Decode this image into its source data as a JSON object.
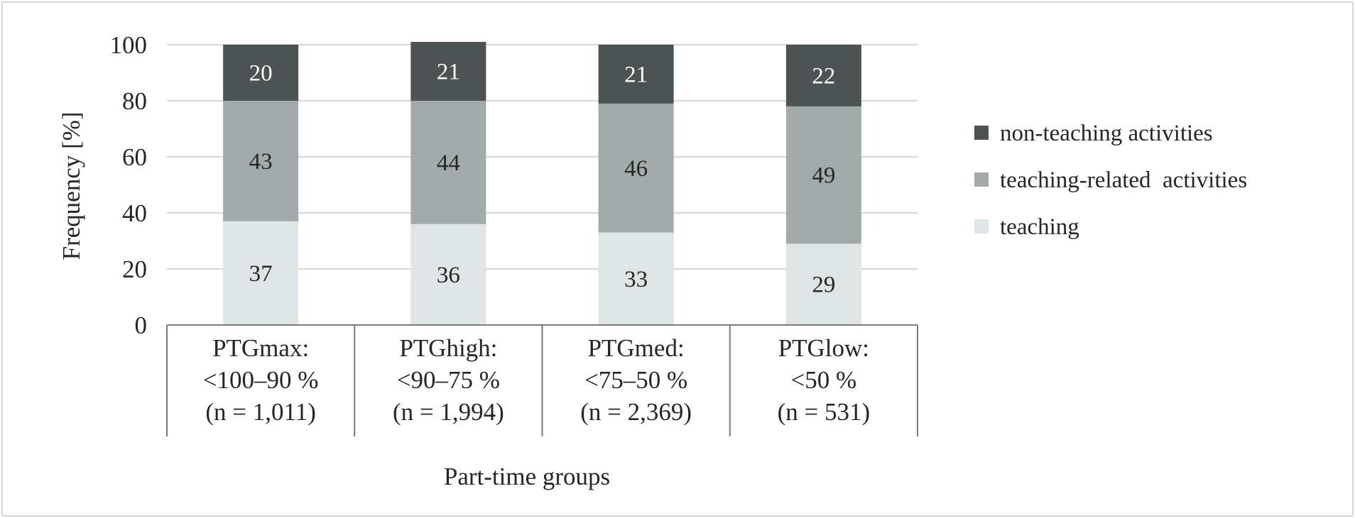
{
  "chart_data": {
    "type": "bar",
    "stacked": true,
    "title": "",
    "xlabel": "Part-time groups",
    "ylabel": "Frequency [%]",
    "ylim": [
      0,
      100
    ],
    "yticks": [
      "0",
      "20",
      "40",
      "60",
      "80",
      "100"
    ],
    "grid": true,
    "legend_position": "right",
    "categories": [
      [
        "PTGmax:",
        "<100–90 %",
        "(n = 1,011)"
      ],
      [
        "PTGhigh:",
        "<90–75 %",
        "(n = 1,994)"
      ],
      [
        "PTGmed:",
        "<75–50 %",
        "(n = 2,369)"
      ],
      [
        "PTGlow:",
        "<50 %",
        "(n = 531)"
      ]
    ],
    "series": [
      {
        "name": "teaching",
        "values": [
          37,
          36,
          33,
          29
        ],
        "color": "#dfe4e4"
      },
      {
        "name": "teaching-related  activities",
        "values": [
          43,
          44,
          46,
          49
        ],
        "color": "#a3aaaa"
      },
      {
        "name": "non-teaching activities",
        "values": [
          20,
          21,
          21,
          22
        ],
        "color": "#4d5353"
      }
    ],
    "legend_order": [
      "non-teaching activities",
      "teaching-related  activities",
      "teaching"
    ]
  }
}
